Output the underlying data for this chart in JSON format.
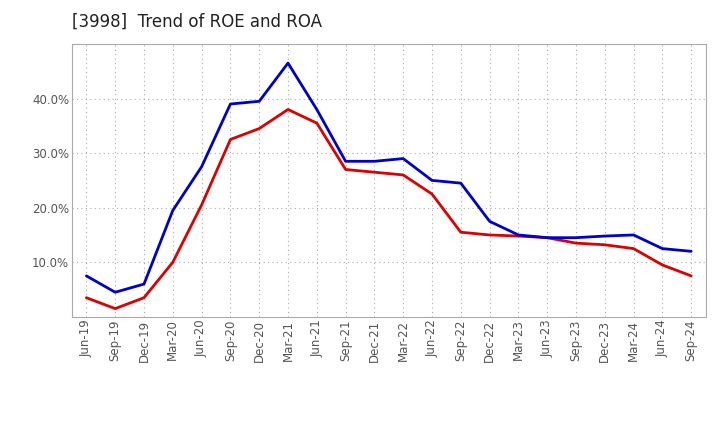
{
  "title": "[3998]  Trend of ROE and ROA",
  "labels": [
    "Jun-19",
    "Sep-19",
    "Dec-19",
    "Mar-20",
    "Jun-20",
    "Sep-20",
    "Dec-20",
    "Mar-21",
    "Jun-21",
    "Sep-21",
    "Dec-21",
    "Mar-22",
    "Jun-22",
    "Sep-22",
    "Dec-22",
    "Mar-23",
    "Jun-23",
    "Sep-23",
    "Dec-23",
    "Mar-24",
    "Jun-24",
    "Sep-24"
  ],
  "ROE": [
    3.5,
    1.5,
    3.5,
    10.0,
    20.5,
    32.5,
    34.5,
    38.0,
    35.5,
    27.0,
    26.5,
    26.0,
    22.5,
    15.5,
    15.0,
    14.8,
    14.5,
    13.5,
    13.2,
    12.5,
    9.5,
    7.5
  ],
  "ROA": [
    7.5,
    4.5,
    6.0,
    19.5,
    27.5,
    39.0,
    39.5,
    46.5,
    38.0,
    28.5,
    28.5,
    29.0,
    25.0,
    24.5,
    17.5,
    15.0,
    14.5,
    14.5,
    14.8,
    15.0,
    12.5,
    12.0
  ],
  "roe_color": "#dd0000",
  "roa_color": "#0000cc",
  "line_width": 2.0,
  "bg_color": "#ffffff",
  "grid_color": "#aaaaaa",
  "yticks": [
    10.0,
    20.0,
    30.0,
    40.0
  ],
  "ylim": [
    0,
    50
  ],
  "title_fontsize": 12,
  "legend_fontsize": 10,
  "tick_fontsize": 8.5
}
